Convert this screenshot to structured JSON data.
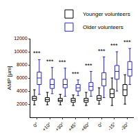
{
  "chart_data": {
    "type": "box",
    "y_label": "AMP [µm]",
    "categories": [
      "0°",
      "+10°",
      "+30°",
      "+45°",
      "+60°",
      "0°",
      "-15°",
      "-30°"
    ],
    "series": [
      {
        "name": "Younger volunteers",
        "color": "#000000",
        "q1": [
          2600,
          2400,
          2400,
          2300,
          2300,
          2600,
          3000,
          3300
        ],
        "median": [
          2900,
          2700,
          2600,
          2600,
          2600,
          2900,
          3600,
          4200
        ],
        "q3": [
          3200,
          3000,
          2900,
          2900,
          2900,
          3300,
          4300,
          5000
        ],
        "lowerfence": [
          1900,
          1900,
          1900,
          1800,
          1800,
          2000,
          1800,
          2000
        ],
        "upperfence": [
          4200,
          3800,
          3500,
          3400,
          3800,
          4500,
          6000,
          6500
        ]
      },
      {
        "name": "Older volunteers",
        "color": "#2323d8",
        "q1": [
          5000,
          4400,
          4500,
          4000,
          4100,
          4800,
          5800,
          6300
        ],
        "median": [
          6000,
          5000,
          5000,
          4500,
          4700,
          5800,
          7000,
          7300
        ],
        "q3": [
          6900,
          5800,
          5800,
          5000,
          5300,
          6800,
          7900,
          8500
        ],
        "lowerfence": [
          3500,
          3600,
          3200,
          3300,
          3200,
          3000,
          4000,
          5000
        ],
        "upperfence": [
          8800,
          7600,
          7500,
          5700,
          7000,
          9200,
          10000,
          10500
        ]
      }
    ],
    "annotations": [
      "***",
      "***",
      "***",
      "***",
      "***",
      "***",
      "***",
      "***"
    ],
    "ylim": [
      0,
      12000
    ],
    "yticks": [
      2000,
      4000,
      6000,
      8000,
      10000,
      12000
    ],
    "legend": "top right",
    "grid": false
  }
}
